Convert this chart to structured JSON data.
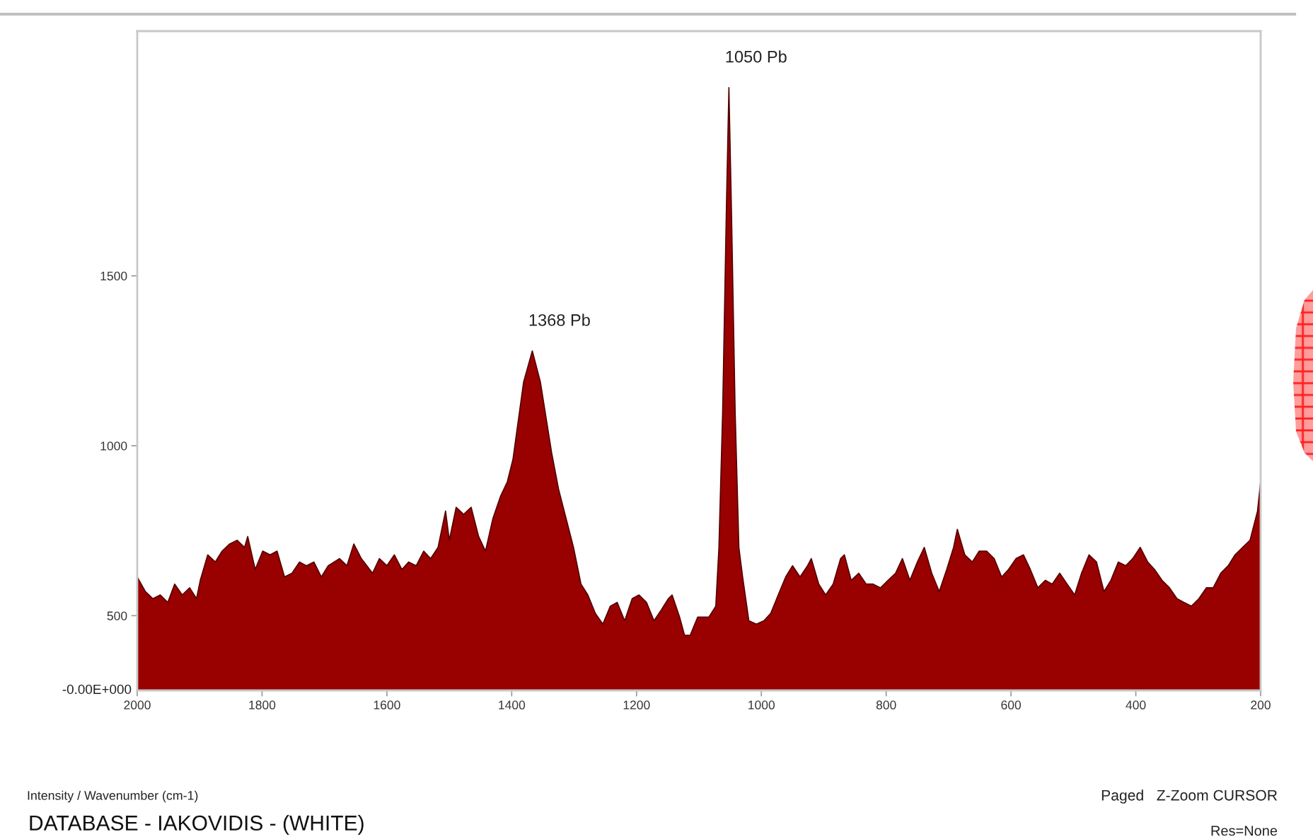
{
  "chart_data": {
    "type": "area",
    "title": "DATABASE - IAKOVIDIS - (WHITE)",
    "annotations": [
      "-0.00E+000",
      "Intensity / Wavenumber (cm-1)",
      "Paged   Z-Zoom CURSOR",
      "Res=None",
      {
        "text": "1050 Pb",
        "x": 1052,
        "y": 2054
      },
      {
        "text": "1368 Pb",
        "x": 1367,
        "y": 1279
      }
    ],
    "x": [
      2000,
      1987,
      1975,
      1963,
      1951,
      1940,
      1928,
      1916,
      1905,
      1899,
      1887,
      1875,
      1864,
      1852,
      1840,
      1828,
      1823,
      1811,
      1799,
      1787,
      1776,
      1764,
      1752,
      1740,
      1729,
      1717,
      1705,
      1694,
      1676,
      1664,
      1653,
      1641,
      1623,
      1612,
      1600,
      1588,
      1576,
      1565,
      1553,
      1541,
      1530,
      1518,
      1506,
      1500,
      1489,
      1477,
      1465,
      1453,
      1442,
      1430,
      1418,
      1407,
      1398,
      1381,
      1367,
      1354,
      1336,
      1325,
      1313,
      1301,
      1289,
      1278,
      1266,
      1254,
      1242,
      1231,
      1219,
      1207,
      1196,
      1184,
      1172,
      1160,
      1149,
      1143,
      1131,
      1123,
      1114,
      1102,
      1084,
      1073,
      1068,
      1062,
      1056,
      1052,
      1048,
      1042,
      1036,
      1030,
      1020,
      1008,
      996,
      985,
      973,
      961,
      950,
      938,
      926,
      920,
      908,
      897,
      885,
      873,
      867,
      856,
      844,
      832,
      821,
      809,
      797,
      785,
      774,
      762,
      750,
      739,
      727,
      715,
      703,
      692,
      686,
      674,
      662,
      651,
      639,
      627,
      615,
      604,
      592,
      580,
      569,
      557,
      545,
      534,
      522,
      510,
      498,
      487,
      475,
      463,
      451,
      440,
      428,
      416,
      405,
      393,
      381,
      370,
      358,
      346,
      334,
      323,
      311,
      299,
      287,
      276,
      264,
      252,
      241,
      229,
      217,
      205,
      200
    ],
    "series": [
      {
        "color": "#990000",
        "values": [
          614,
          571,
          550,
          561,
          539,
          593,
          561,
          582,
          550,
          604,
          679,
          658,
          690,
          711,
          722,
          701,
          733,
          636,
          690,
          679,
          690,
          614,
          625,
          658,
          647,
          658,
          614,
          647,
          668,
          647,
          711,
          668,
          625,
          668,
          647,
          679,
          636,
          658,
          647,
          690,
          668,
          701,
          808,
          722,
          819,
          798,
          819,
          733,
          690,
          787,
          851,
          894,
          960,
          1187,
          1279,
          1187,
          979,
          873,
          787,
          701,
          593,
          561,
          507,
          475,
          528,
          539,
          485,
          550,
          561,
          539,
          485,
          518,
          550,
          561,
          496,
          442,
          442,
          496,
          496,
          528,
          700,
          1100,
          1700,
          2054,
          1700,
          1100,
          700,
          614,
          485,
          475,
          485,
          507,
          561,
          614,
          647,
          614,
          647,
          668,
          593,
          561,
          593,
          668,
          679,
          604,
          625,
          593,
          593,
          582,
          604,
          625,
          668,
          604,
          658,
          701,
          625,
          571,
          636,
          701,
          754,
          679,
          658,
          690,
          690,
          668,
          614,
          636,
          668,
          679,
          636,
          582,
          604,
          593,
          625,
          593,
          561,
          625,
          679,
          658,
          571,
          604,
          658,
          647,
          668,
          701,
          658,
          636,
          604,
          582,
          550,
          539,
          528,
          550,
          582,
          582,
          625,
          647,
          679,
          701,
          722,
          808,
          894
        ]
      }
    ],
    "xlim": [
      2000,
      200
    ],
    "xticks": [
      2000,
      1800,
      1600,
      1400,
      1200,
      1000,
      800,
      600,
      400,
      200
    ],
    "ylim": [
      280,
      2220
    ],
    "yticks": [
      500,
      1000,
      1500
    ]
  }
}
